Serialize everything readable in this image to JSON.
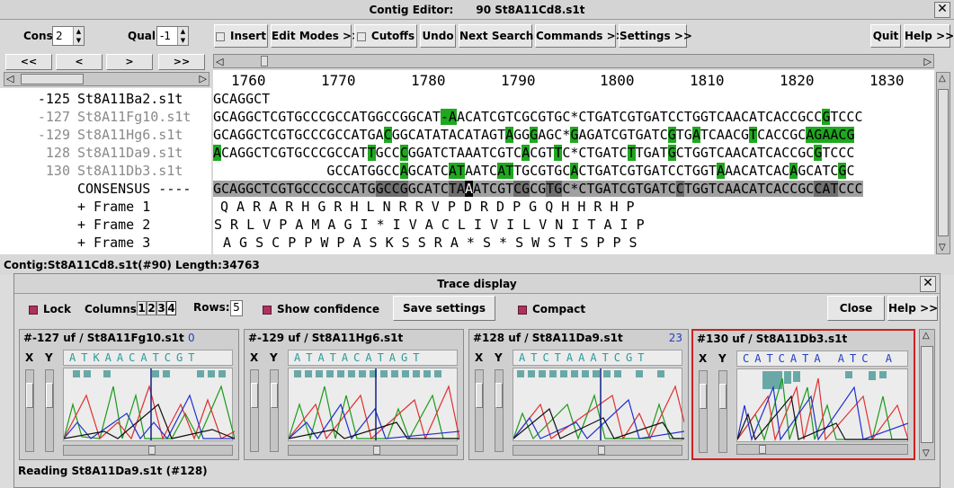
{
  "contig_editor": {
    "title": "Contig Editor:",
    "title_file": "90 St8A11Cd8.s1t",
    "close_glyph": "✕",
    "cons_label": "Cons",
    "cons_value": "2",
    "qual_label": "Qual",
    "qual_value": "-1",
    "toolbar": {
      "insert": "Insert",
      "edit_modes": "Edit Modes >>",
      "cutoffs": "Cutoffs",
      "undo": "Undo",
      "next_search": "Next Search",
      "commands": "Commands >>",
      "settings": "Settings >>",
      "quit": "Quit",
      "help": "Help >>"
    },
    "nav": [
      "<<",
      "<",
      ">",
      ">>"
    ],
    "ruler": [
      "1760",
      "1770",
      "1780",
      "1790",
      "1800",
      "1810",
      "1820",
      "1830"
    ],
    "reads": [
      {
        "num": "-125",
        "name": "St8A11Ba2.s1t",
        "grey": false
      },
      {
        "num": "-127",
        "name": "St8A11Fg10.s1t",
        "grey": true
      },
      {
        "num": "-129",
        "name": "St8A11Hg6.s1t",
        "grey": true
      },
      {
        "num": "128",
        "name": "St8A11Da9.s1t",
        "grey": true
      },
      {
        "num": "130",
        "name": "St8A11Db3.s1t",
        "grey": true
      }
    ],
    "consensus_label": "CONSENSUS ----",
    "frames": [
      "+ Frame 1",
      "+ Frame 2",
      "+ Frame 3"
    ],
    "frame1": "Q A R A R H G R H L N R R V P D R D P G Q H H R H P",
    "frame2": "S R L V P A M A G I * I V A C L I V I L V N I T A I P",
    "frame3": "A G S C P P W P A S K S S R A * S * S W S T S P P S",
    "status": "Contig:St8A11Cd8.s1t(#90)    Length:34763"
  },
  "trace_display": {
    "title": "Trace display",
    "lock": "Lock",
    "columns_label": "Columns:",
    "columns": [
      "1",
      "2",
      "3",
      "4"
    ],
    "rows_label": "Rows:",
    "rows_value": "5",
    "show_confidence": "Show confidence",
    "save_settings": "Save settings",
    "compact": "Compact",
    "close": "Close",
    "help": "Help >>",
    "panels": [
      {
        "header": "#-127 uf  / St8A11Fg10.s1t",
        "extra": "0",
        "bases": "ATKAACATCGT",
        "conf": "10 04  04 08    11 09 09  09 09 09"
      },
      {
        "header": "#-129 uf  / St8A11Hg6.s1t",
        "extra": "",
        "bases": "ATATACATAGT",
        "conf": "11 10 10 09 08 09 10 11 10"
      },
      {
        "header": "#128 uf  / St8A11Da9.s1t",
        "extra": "23",
        "bases": "ATCTAAATCGT",
        "conf": "10 12 11 13 11 13 11 12 13 09"
      },
      {
        "header": "#130 uf  / St8A11Db3.s1t",
        "extra": "",
        "bases": "CATCATA  ATC A",
        "conf": "15 21 22 22 12 20   09  14 13"
      }
    ],
    "xy": [
      "X",
      "Y"
    ],
    "status": "Reading St8A11Da9.s1t (#128)"
  },
  "colors": {
    "green_highlight": "#1fa81f",
    "selected_border": "#d02020",
    "check_on": "#b03060"
  }
}
